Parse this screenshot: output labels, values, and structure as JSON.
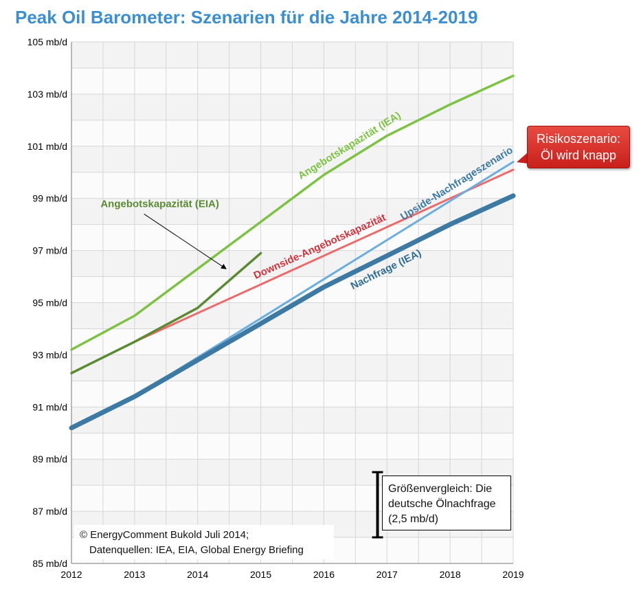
{
  "title": "Peak Oil Barometer: Szenarien für die Jahre 2014-2019",
  "annotations": {
    "risk_line1": "Risikoszenario:",
    "risk_line2": "Öl wird knapp",
    "compare_line1": "Größenvergleich: Die",
    "compare_line2": "deutsche Ölnachfrage",
    "compare_line3": "(2,5 mb/d)",
    "credit_line1": "© EnergyComment Bukold Juli 2014;",
    "credit_line2": "Datenquellen: IEA, EIA, Global Energy Briefing"
  },
  "colors": {
    "title": "#3b8fd0",
    "angebot_iea": "#7dc242",
    "angebot_eia": "#5a8a32",
    "downside": "#ee6a6a",
    "upside": "#6aaee0",
    "nachfrage": "#3d7aa3",
    "risk_box": "#d9312b"
  },
  "chart_data": {
    "type": "line",
    "x": [
      2012,
      2013,
      2014,
      2015,
      2016,
      2017,
      2018,
      2019
    ],
    "y_ticks": [
      "85 mb/d",
      "87 mb/d",
      "89 mb/d",
      "91 mb/d",
      "93 mb/d",
      "95 mb/d",
      "97 mb/d",
      "99 mb/d",
      "101 mb/d",
      "103 mb/d",
      "105 mb/d"
    ],
    "y_tick_values": [
      85,
      87,
      89,
      91,
      93,
      95,
      97,
      99,
      101,
      103,
      105
    ],
    "x_tick_labels": [
      "2012",
      "2013",
      "2014",
      "2015",
      "2016",
      "2017",
      "2018",
      "2019"
    ],
    "ylim": [
      85,
      105
    ],
    "xlim": [
      2012,
      2019
    ],
    "grid": true,
    "series": [
      {
        "name": "Angebotskapazität (IEA)",
        "key": "angebot_iea",
        "x": [
          2012,
          2013,
          2014,
          2015,
          2016,
          2017,
          2018,
          2019
        ],
        "values": [
          93.2,
          94.5,
          96.3,
          98.1,
          99.9,
          101.4,
          102.6,
          103.7
        ]
      },
      {
        "name": "Angebotskapazität (EIA)",
        "key": "angebot_eia",
        "x": [
          2012,
          2013,
          2014,
          2015
        ],
        "values": [
          92.3,
          93.5,
          94.8,
          96.9
        ]
      },
      {
        "name": "Downside-Angebotskapazität",
        "key": "downside",
        "x": [
          2013,
          2019
        ],
        "values": [
          93.5,
          100.1
        ]
      },
      {
        "name": "Upside-Nachfrageszenario",
        "key": "upside",
        "x": [
          2012,
          2013,
          2014,
          2015,
          2016,
          2017,
          2018,
          2019
        ],
        "values": [
          90.2,
          91.4,
          92.9,
          94.4,
          95.9,
          97.4,
          98.9,
          100.4
        ]
      },
      {
        "name": "Nachfrage (IEA)",
        "key": "nachfrage",
        "x": [
          2012,
          2013,
          2014,
          2015,
          2016,
          2017,
          2018,
          2019
        ],
        "values": [
          90.2,
          91.4,
          92.8,
          94.2,
          95.6,
          96.8,
          98.0,
          99.1
        ]
      }
    ],
    "scale_bar": {
      "from": 86.0,
      "to": 88.5,
      "x": 2016.85
    }
  }
}
